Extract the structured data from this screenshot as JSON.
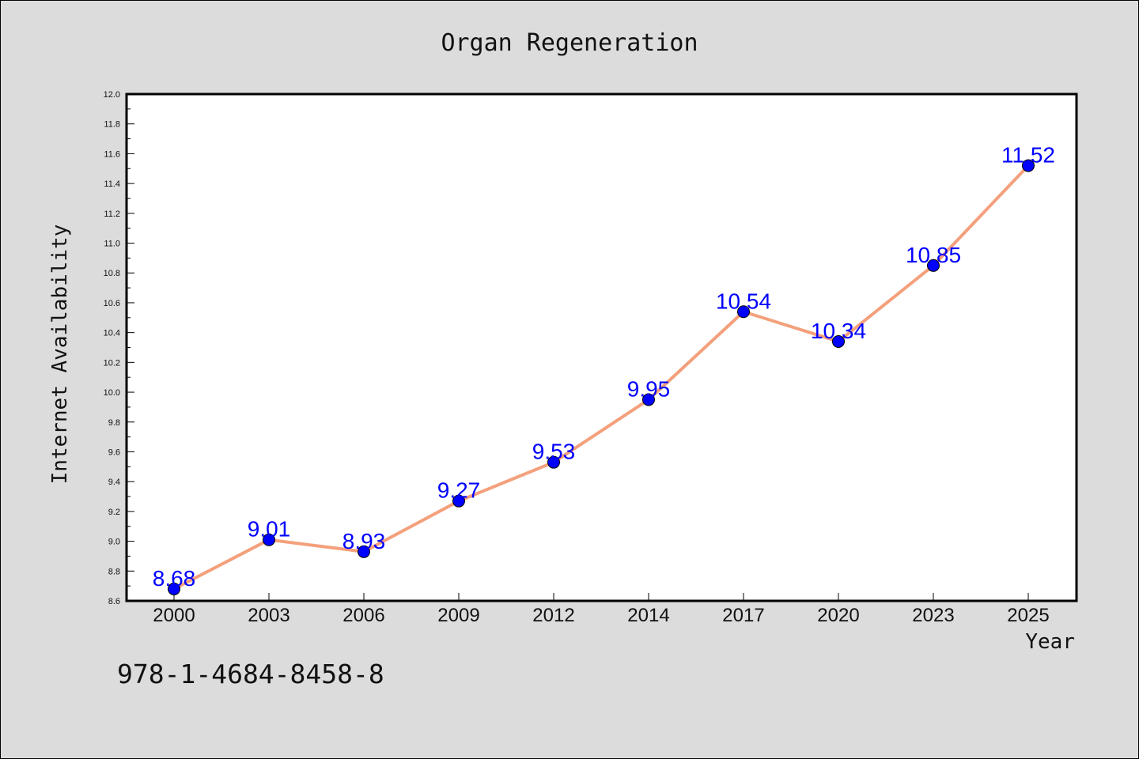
{
  "chart_data": {
    "type": "line",
    "title": "Organ Regeneration",
    "xlabel": "Year",
    "ylabel": "Internet Availability",
    "categories": [
      "2000",
      "2003",
      "2006",
      "2009",
      "2012",
      "2014",
      "2017",
      "2020",
      "2023",
      "2025"
    ],
    "series": [
      {
        "values": [
          8.68,
          9.01,
          8.93,
          9.27,
          9.53,
          9.95,
          10.54,
          10.34,
          10.85,
          11.52
        ],
        "labels": [
          "8.68",
          "9.01",
          "8.93",
          "9.27",
          "9.53",
          "9.95",
          "10.54",
          "10.34",
          "10.85",
          "11.52"
        ]
      }
    ],
    "ylim": [
      8.6,
      12.0
    ],
    "yticks": [
      "8.6",
      "8.8",
      "9.0",
      "9.2",
      "9.4",
      "9.6",
      "9.8",
      "10.0",
      "10.2",
      "10.4",
      "10.6",
      "10.8",
      "11.0",
      "11.2",
      "11.4",
      "11.6",
      "11.8",
      "12.0"
    ],
    "grid": false,
    "legend": "none",
    "colors": {
      "line": "#f4a07c",
      "marker": "#0000ff",
      "data_label": "#0000ff",
      "background": "#dcdcdc",
      "plot_background": "#ffffff"
    }
  },
  "footer": {
    "isbn": "978-1-4684-8458-8"
  }
}
